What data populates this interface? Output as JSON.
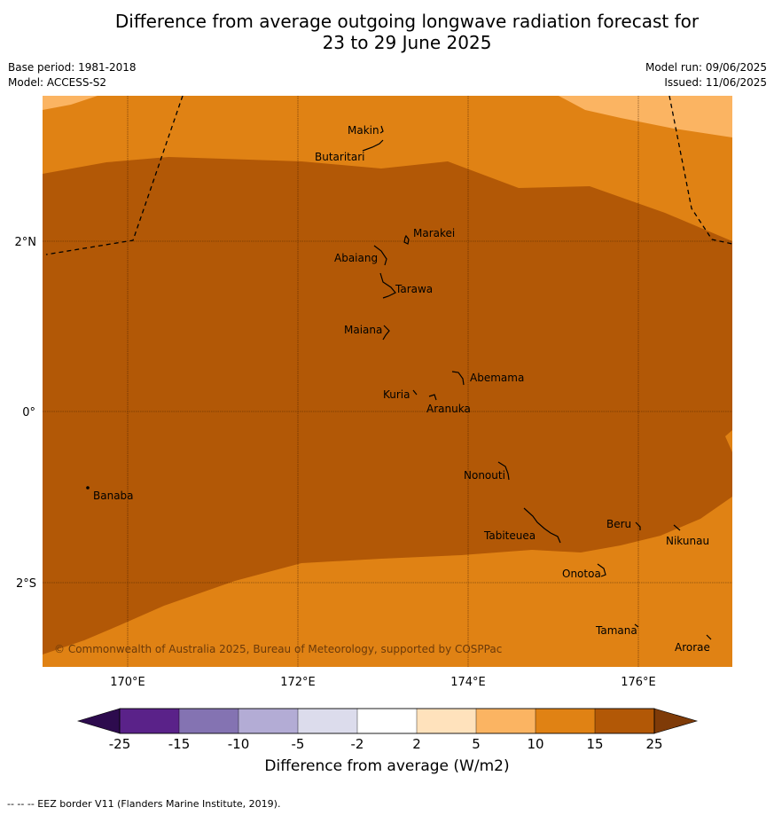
{
  "title_line1": "Difference from average outgoing longwave radiation forecast for",
  "title_line2": "23 to 29 June 2025",
  "base_period": "Base period: 1981-2018",
  "model": "Model: ACCESS-S2",
  "model_run": "Model run: 09/06/2025",
  "issued": "Issued: 11/06/2025",
  "copyright": "© Commonwealth of Australia 2025, Bureau of Meteorology, supported by COSPPac",
  "lon_labels": [
    "170°E",
    "172°E",
    "174°E",
    "176°E"
  ],
  "lat_labels": [
    "2°N",
    "0°",
    "2°S"
  ],
  "places": [
    "Makin",
    "Butaritari",
    "Marakei",
    "Abaiang",
    "Tarawa",
    "Maiana",
    "Abemama",
    "Kuria",
    "Aranuka",
    "Nonouti",
    "Banaba",
    "Beru",
    "Nikunau",
    "Tabiteuea",
    "Onotoa",
    "Tamana",
    "Arorae"
  ],
  "colorbar": {
    "title": "Difference from average (W/m2)",
    "ticks": [
      "-25",
      "-15",
      "-10",
      "-5",
      "-2",
      "2",
      "5",
      "10",
      "15",
      "25"
    ],
    "colors": [
      "#5a2289",
      "#8473b2",
      "#b3acd5",
      "#dcdcec",
      "#ffffff",
      "#ffe2bc",
      "#fbb462",
      "#e08214",
      "#b25806"
    ],
    "low_extend_color": "#2d0b4e",
    "high_extend_color": "#7f3b08"
  },
  "footer": "--  --  -- EEZ border V11 (Flanders Marine Institute, 2019)."
}
